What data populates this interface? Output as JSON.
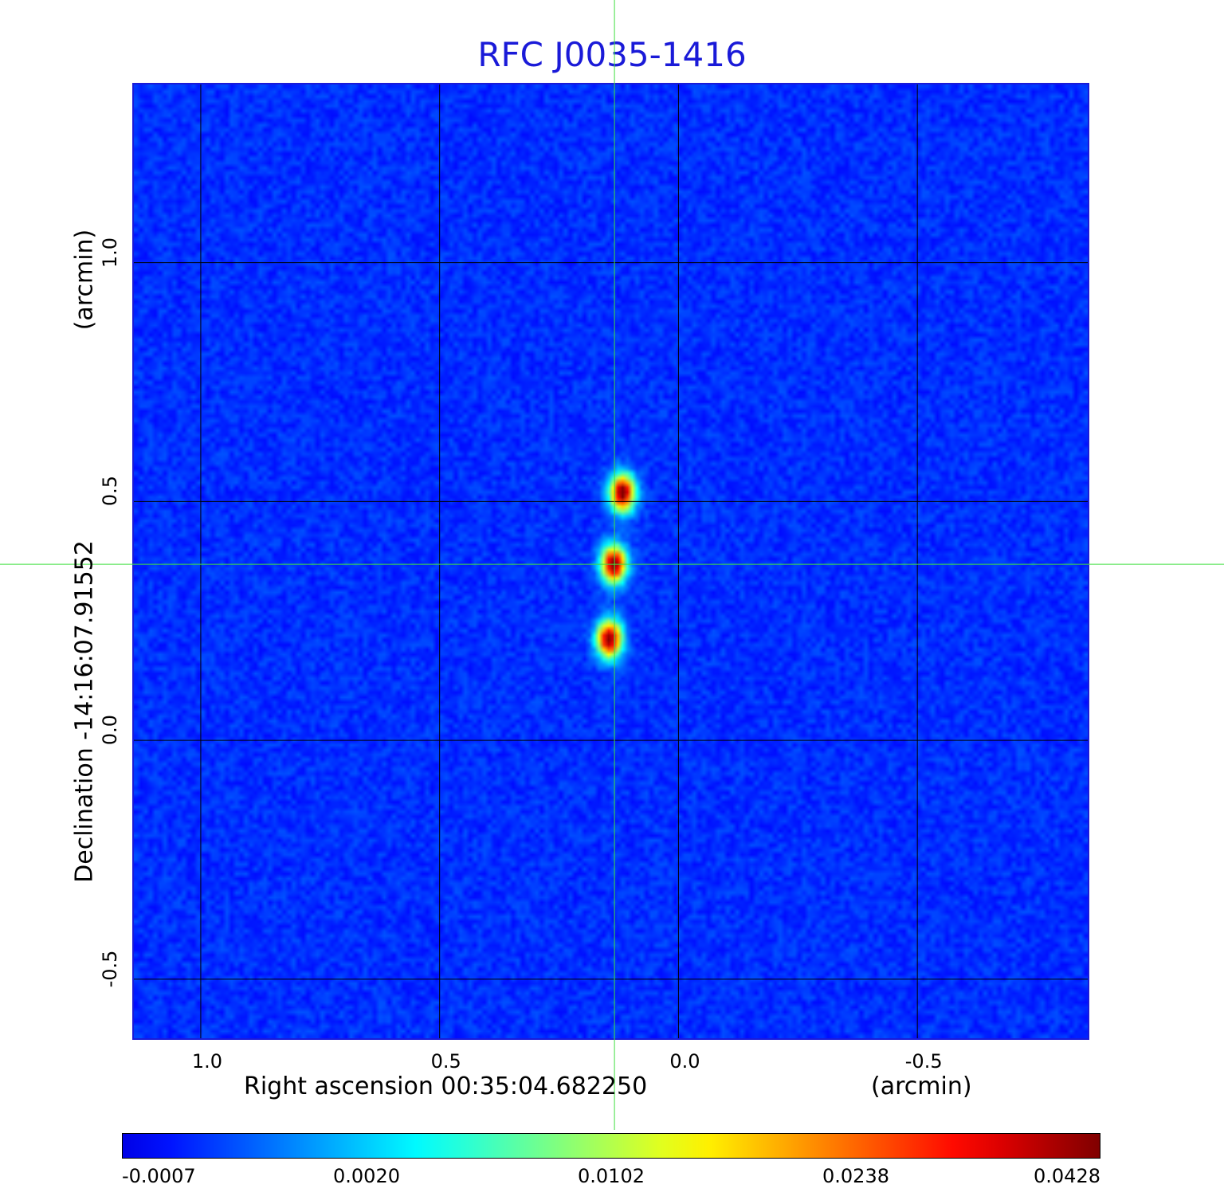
{
  "title": "RFC J0035-1416",
  "chart_data": {
    "type": "heatmap",
    "title": "RFC J0035-1416",
    "xlabel": "Right ascension  00:35:04.682250",
    "xunit": "(arcmin)",
    "ylabel": "Declination  -14:16:07.91552",
    "yunit": "(arcmin)",
    "xlim": [
      1.14,
      -0.86
    ],
    "ylim": [
      -0.627,
      1.373
    ],
    "x_ticks": [
      1.0,
      0.5,
      0.0,
      -0.5
    ],
    "x_tick_labels": [
      "1.0",
      "0.5",
      "0.0",
      "-0.5"
    ],
    "y_ticks": [
      1.0,
      0.5,
      0.0,
      -0.5
    ],
    "y_tick_labels": [
      "1.0",
      "0.5",
      "0.0",
      "-0.5"
    ],
    "grid": true,
    "crosshair": {
      "x": 0.134,
      "y": 0.367
    },
    "sources": [
      {
        "x": 0.116,
        "y": 0.517,
        "peak": 0.0428
      },
      {
        "x": 0.134,
        "y": 0.367,
        "peak": 0.0428
      },
      {
        "x": 0.143,
        "y": 0.21,
        "peak": 0.0428
      }
    ],
    "colorbar": {
      "colormap": "jet",
      "tick_labels": [
        "-0.0007",
        "0.0020",
        "0.0102",
        "0.0238",
        "0.0428"
      ],
      "min": -0.0007,
      "max": 0.0428
    }
  },
  "colors": {
    "title": "#1a1ad8",
    "grid": "#000000",
    "crosshair": "#40e040"
  }
}
